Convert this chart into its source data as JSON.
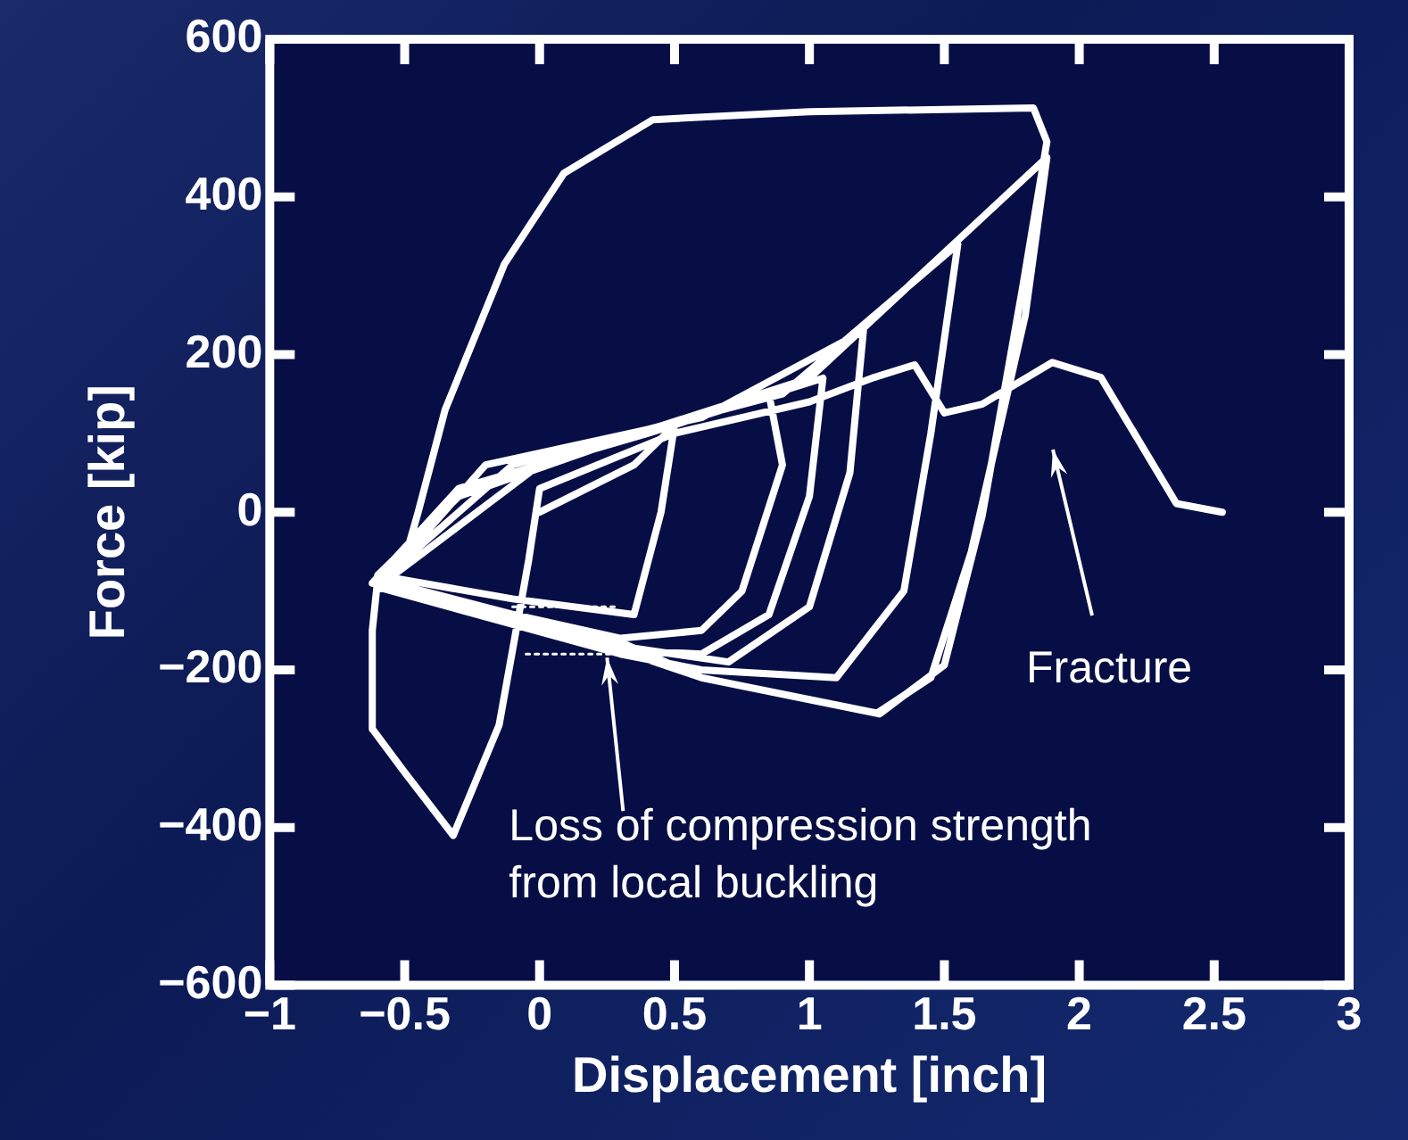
{
  "chart_data": {
    "type": "line",
    "xlabel": "Displacement [inch]",
    "ylabel": "Force [kip]",
    "xlim": [
      -1,
      3
    ],
    "ylim": [
      -600,
      600
    ],
    "xticks": [
      -1,
      -0.5,
      0,
      0.5,
      1,
      1.5,
      2,
      2.5,
      3
    ],
    "yticks": [
      -600,
      -400,
      -200,
      0,
      200,
      400,
      600
    ],
    "grid": false,
    "marker": "none",
    "line_style": "solid",
    "series": [
      {
        "color": "#ffffff",
        "x": [
          0,
          0.35,
          0.5,
          0.45,
          0.35,
          -0.1,
          -0.6,
          -0.3,
          0.2,
          0.85,
          0.9,
          0.75,
          0.6,
          0.3,
          -0.62,
          -0.3,
          0.4,
          1.05,
          1.0,
          0.85,
          0.6,
          0.3,
          -0.6,
          -0.2,
          0.6,
          1.2,
          1.15,
          1.0,
          0.7,
          0.3,
          -0.6,
          -0.1,
          0.9,
          1.55,
          1.45,
          1.35,
          1.1,
          0.6,
          0.3,
          -0.6,
          0,
          1.0,
          1.88,
          1.8,
          1.6,
          1.45,
          1.25,
          0.6,
          0.3,
          -0.6,
          -0.5,
          -0.45,
          -0.35,
          -0.13,
          0.09,
          0.42,
          1.0,
          1.83,
          1.88,
          1.79,
          1.64,
          1.5,
          1.26,
          0.6,
          0.3,
          -0.6,
          -0.62,
          -0.62,
          -0.5,
          -0.32,
          -0.15,
          -0.04,
          0.0,
          0.5,
          1.0,
          1.24,
          1.39,
          1.5,
          1.64,
          1.9,
          2.08,
          2.36,
          2.53
        ],
        "values": [
          0,
          60,
          110,
          0,
          -130,
          -110,
          -80,
          20,
          80,
          150,
          60,
          -100,
          -150,
          -160,
          -90,
          30,
          100,
          170,
          20,
          -130,
          -180,
          -175,
          -95,
          60,
          120,
          230,
          50,
          -120,
          -190,
          -170,
          -90,
          60,
          150,
          340,
          100,
          -100,
          -210,
          -200,
          -180,
          -95,
          60,
          170,
          450,
          250,
          -50,
          -210,
          -255,
          -210,
          -165,
          -85,
          -60,
          0,
          130,
          315,
          430,
          498,
          508,
          513,
          470,
          285,
          -5,
          -194,
          -256,
          -210,
          -175,
          -85,
          -150,
          -275,
          -330,
          -410,
          -270,
          -60,
          30,
          100,
          140,
          171,
          187,
          126,
          137,
          190,
          171,
          11,
          0
        ]
      },
      {
        "color": "#ffffff",
        "x": [
          -0.1,
          0.28
        ],
        "values": [
          -120,
          -120
        ],
        "line_style": "dotted"
      },
      {
        "color": "#ffffff",
        "x": [
          -0.05,
          0.28
        ],
        "values": [
          -180,
          -180
        ],
        "line_style": "dotted"
      }
    ],
    "annotations": [
      "Fracture",
      {
        "text": "Loss of compression strength\nfrom local buckling",
        "x": 0.25,
        "y": -180
      }
    ]
  }
}
